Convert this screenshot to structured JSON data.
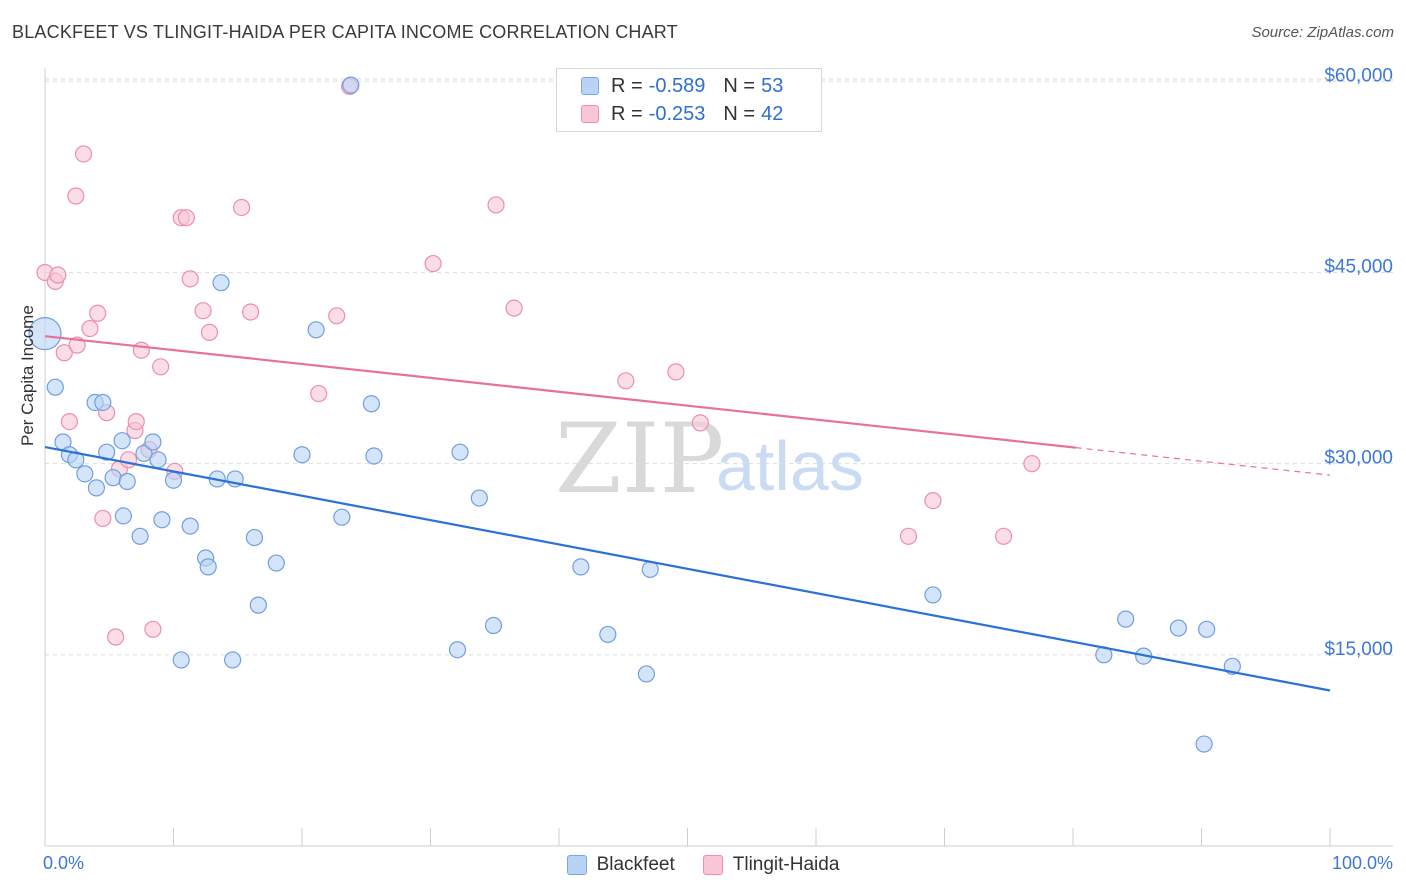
{
  "title": "BLACKFEET VS TLINGIT-HAIDA PER CAPITA INCOME CORRELATION CHART",
  "source": "Source: ZipAtlas.com",
  "watermark": {
    "zip": "ZIP",
    "atlas": "atlas"
  },
  "legend_top": [
    {
      "r_label": "R =",
      "r_value": "-0.589",
      "n_label": "N =",
      "n_value": "53"
    },
    {
      "r_label": "R =",
      "r_value": "-0.253",
      "n_label": "N =",
      "n_value": "42"
    }
  ],
  "legend_bottom": [
    "Blackfeet",
    "Tlingit-Haida"
  ],
  "colors": {
    "blue_fill": "#b9d3f5",
    "blue_stroke": "#6f9fe0",
    "blue_line": "#2a72d6",
    "pink_fill": "#f9c6d6",
    "pink_stroke": "#ec8fae",
    "pink_line": "#e8709a",
    "tick_label": "#3c78d8"
  },
  "chart_data": {
    "type": "scatter",
    "title": "BLACKFEET VS TLINGIT-HAIDA PER CAPITA INCOME CORRELATION CHART",
    "xlabel": "",
    "ylabel": "Per Capita Income",
    "xlim": [
      0,
      100
    ],
    "ylim": [
      0,
      61500
    ],
    "x_tick_labels": [
      "0.0%",
      "100.0%"
    ],
    "y_ticks": [
      15000,
      30000,
      45000,
      60000
    ],
    "y_tick_labels": [
      "$15,000",
      "$30,000",
      "$45,000",
      "$60,000"
    ],
    "grid": "horizontal dashed",
    "legend_position": "top-center",
    "series": [
      {
        "name": "Blackfeet",
        "color": "#b9d3f5",
        "r": -0.589,
        "n": 53,
        "trend": {
          "x": [
            0,
            100
          ],
          "y": [
            31300,
            12200
          ],
          "dashed_from": null
        },
        "points": [
          [
            0,
            40200,
            "big"
          ],
          [
            0.8,
            36000
          ],
          [
            1.4,
            31700
          ],
          [
            1.9,
            30700
          ],
          [
            2.4,
            30300
          ],
          [
            3.1,
            29200
          ],
          [
            3.9,
            34800
          ],
          [
            4.0,
            28100
          ],
          [
            4.5,
            34800
          ],
          [
            4.8,
            30900
          ],
          [
            5.3,
            28900
          ],
          [
            6.0,
            31800
          ],
          [
            6.1,
            25900
          ],
          [
            6.4,
            28600
          ],
          [
            7.4,
            24300
          ],
          [
            7.7,
            30800
          ],
          [
            8.4,
            31700
          ],
          [
            8.8,
            30300
          ],
          [
            9.1,
            25600
          ],
          [
            10.0,
            28700
          ],
          [
            10.6,
            14600
          ],
          [
            11.3,
            25100
          ],
          [
            12.5,
            22600
          ],
          [
            12.7,
            21900
          ],
          [
            13.4,
            28800
          ],
          [
            13.7,
            44200
          ],
          [
            14.6,
            14600
          ],
          [
            14.8,
            28800
          ],
          [
            16.3,
            24200
          ],
          [
            16.6,
            18900
          ],
          [
            18.0,
            22200
          ],
          [
            20.0,
            30700
          ],
          [
            21.1,
            40500
          ],
          [
            23.1,
            25800
          ],
          [
            23.8,
            59700
          ],
          [
            25.4,
            34700
          ],
          [
            25.6,
            30600
          ],
          [
            32.1,
            15400
          ],
          [
            32.3,
            30900
          ],
          [
            33.8,
            27300
          ],
          [
            34.9,
            17300
          ],
          [
            41.7,
            21900
          ],
          [
            43.8,
            16600
          ],
          [
            46.8,
            13500
          ],
          [
            47.1,
            21700
          ],
          [
            69.1,
            19700
          ],
          [
            82.4,
            15000
          ],
          [
            84.1,
            17800
          ],
          [
            85.5,
            14900
          ],
          [
            88.2,
            17100
          ],
          [
            90.2,
            8000
          ],
          [
            90.4,
            17000
          ],
          [
            92.4,
            14100
          ]
        ]
      },
      {
        "name": "Tlingit-Haida",
        "color": "#f9c6d6",
        "r": -0.253,
        "n": 42,
        "trend": {
          "x": [
            0,
            100
          ],
          "y": [
            40000,
            29100
          ],
          "dashed_from": 80.2
        },
        "points": [
          [
            0,
            45000
          ],
          [
            0.8,
            44300
          ],
          [
            1.0,
            44800
          ],
          [
            1.5,
            38700
          ],
          [
            1.9,
            33300
          ],
          [
            2.4,
            51000
          ],
          [
            2.5,
            39300
          ],
          [
            3.0,
            54300
          ],
          [
            3.5,
            40600
          ],
          [
            4.1,
            41800
          ],
          [
            4.5,
            25700
          ],
          [
            4.8,
            34000
          ],
          [
            5.5,
            16400
          ],
          [
            5.8,
            29600
          ],
          [
            6.5,
            30300
          ],
          [
            7.0,
            32600
          ],
          [
            7.1,
            33300
          ],
          [
            7.5,
            38900
          ],
          [
            8.1,
            31100
          ],
          [
            8.4,
            17000
          ],
          [
            9.0,
            37600
          ],
          [
            10.1,
            29400
          ],
          [
            10.6,
            49300
          ],
          [
            11.0,
            49300
          ],
          [
            11.3,
            44500
          ],
          [
            12.3,
            42000
          ],
          [
            12.8,
            40300
          ],
          [
            15.3,
            50100
          ],
          [
            16.0,
            41900
          ],
          [
            21.3,
            35500
          ],
          [
            22.7,
            41600
          ],
          [
            23.7,
            59600
          ],
          [
            30.2,
            45700
          ],
          [
            35.1,
            50300
          ],
          [
            36.5,
            42200
          ],
          [
            45.2,
            36500
          ],
          [
            49.1,
            37200
          ],
          [
            51.0,
            33200
          ],
          [
            67.2,
            24300
          ],
          [
            69.1,
            27100
          ],
          [
            74.6,
            24300
          ],
          [
            76.8,
            30000
          ]
        ]
      }
    ]
  }
}
